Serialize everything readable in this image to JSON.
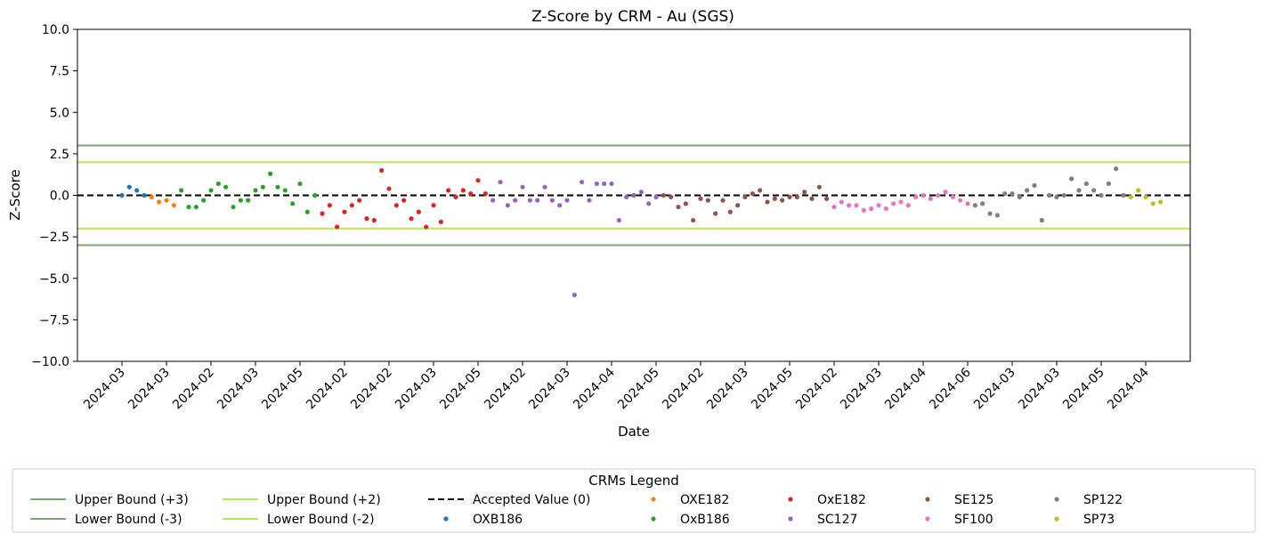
{
  "chart_data": {
    "type": "scatter",
    "title": "Z-Score by CRM - Au (SGS)",
    "xlabel": "Date",
    "ylabel": "Z-Score",
    "ylim": [
      -10,
      10
    ],
    "yticks": [
      {
        "value": 10,
        "label": "10.0"
      },
      {
        "value": 7.5,
        "label": "7.5"
      },
      {
        "value": 5,
        "label": "5.0"
      },
      {
        "value": 2.5,
        "label": "2.5"
      },
      {
        "value": 0,
        "label": "0.0"
      },
      {
        "value": -2.5,
        "label": "−2.5"
      },
      {
        "value": -5,
        "label": "−5.0"
      },
      {
        "value": -7.5,
        "label": "−7.5"
      },
      {
        "value": -10,
        "label": "−10.0"
      }
    ],
    "xlim": [
      -6,
      144
    ],
    "xticks": [
      {
        "index": 0,
        "label": "2024-03"
      },
      {
        "index": 6,
        "label": "2024-03"
      },
      {
        "index": 12,
        "label": "2024-02"
      },
      {
        "index": 18,
        "label": "2024-03"
      },
      {
        "index": 24,
        "label": "2024-05"
      },
      {
        "index": 30,
        "label": "2024-02"
      },
      {
        "index": 36,
        "label": "2024-02"
      },
      {
        "index": 42,
        "label": "2024-03"
      },
      {
        "index": 48,
        "label": "2024-05"
      },
      {
        "index": 54,
        "label": "2024-02"
      },
      {
        "index": 60,
        "label": "2024-03"
      },
      {
        "index": 66,
        "label": "2024-04"
      },
      {
        "index": 72,
        "label": "2024-05"
      },
      {
        "index": 78,
        "label": "2024-02"
      },
      {
        "index": 84,
        "label": "2024-03"
      },
      {
        "index": 90,
        "label": "2024-05"
      },
      {
        "index": 96,
        "label": "2024-02"
      },
      {
        "index": 102,
        "label": "2024-03"
      },
      {
        "index": 108,
        "label": "2024-04"
      },
      {
        "index": 114,
        "label": "2024-06"
      },
      {
        "index": 120,
        "label": "2024-03"
      },
      {
        "index": 126,
        "label": "2024-03"
      },
      {
        "index": 132,
        "label": "2024-05"
      },
      {
        "index": 138,
        "label": "2024-04"
      }
    ],
    "reference_lines": [
      {
        "name": "Upper Bound (+3)",
        "value": 3,
        "color": "#7aa87a",
        "style": "solid"
      },
      {
        "name": "Lower Bound (-3)",
        "value": -3,
        "color": "#7aa87a",
        "style": "solid"
      },
      {
        "name": "Upper Bound (+2)",
        "value": 2,
        "color": "#b5e853",
        "style": "solid"
      },
      {
        "name": "Lower Bound (-2)",
        "value": -2,
        "color": "#b5e853",
        "style": "solid"
      },
      {
        "name": "Accepted Value (0)",
        "value": 0,
        "color": "#000000",
        "style": "dashed"
      }
    ],
    "series": [
      {
        "name": "OXB186",
        "color": "#1f77b4",
        "x": [
          0,
          1,
          2,
          3
        ],
        "y": [
          0.0,
          0.5,
          0.3,
          0.0
        ]
      },
      {
        "name": "OXE182",
        "color": "#ff7f0e",
        "x": [
          4,
          5,
          6,
          7
        ],
        "y": [
          -0.1,
          -0.4,
          -0.3,
          -0.6
        ]
      },
      {
        "name": "OxB186",
        "color": "#2ca02c",
        "x": [
          8,
          9,
          10,
          11,
          12,
          13,
          14,
          15,
          16,
          17,
          18,
          19,
          20,
          21,
          22,
          23,
          24,
          25,
          26
        ],
        "y": [
          0.3,
          -0.7,
          -0.7,
          -0.3,
          0.3,
          0.7,
          0.5,
          -0.7,
          -0.3,
          -0.3,
          0.3,
          0.5,
          1.3,
          0.5,
          0.3,
          -0.5,
          0.7,
          -1.0,
          0.0
        ]
      },
      {
        "name": "OxE182",
        "color": "#d62728",
        "x": [
          27,
          28,
          29,
          30,
          31,
          32,
          33,
          34,
          35,
          36,
          37,
          38,
          39,
          40,
          41,
          42,
          43,
          44,
          45,
          46,
          47,
          48,
          49
        ],
        "y": [
          -1.1,
          -0.6,
          -1.9,
          -1.0,
          -0.6,
          -0.3,
          -1.4,
          -1.5,
          1.5,
          0.4,
          -0.6,
          -0.3,
          -1.4,
          -1.0,
          -1.9,
          -0.6,
          -1.6,
          0.3,
          -0.1,
          0.3,
          0.1,
          0.9,
          0.1
        ]
      },
      {
        "name": "SC127",
        "color": "#9467bd",
        "x": [
          50,
          51,
          52,
          53,
          54,
          55,
          56,
          57,
          58,
          59,
          60,
          61,
          62,
          63,
          64,
          65,
          66,
          67,
          68,
          69,
          70,
          71,
          72
        ],
        "y": [
          -0.3,
          0.8,
          -0.6,
          -0.3,
          0.5,
          -0.3,
          -0.3,
          0.5,
          -0.3,
          -0.6,
          -0.3,
          -6.0,
          0.8,
          -0.3,
          0.7,
          0.7,
          0.7,
          -1.5,
          -0.1,
          0.0,
          0.2,
          -0.5,
          -0.1
        ]
      },
      {
        "name": "SE125",
        "color": "#8c564b",
        "x": [
          73,
          74,
          75,
          76,
          77,
          78,
          79,
          80,
          81,
          82,
          83,
          84,
          85,
          86,
          87,
          88,
          89,
          90,
          91,
          92,
          93,
          94,
          95
        ],
        "y": [
          0.0,
          -0.1,
          -0.7,
          -0.5,
          -1.5,
          -0.2,
          -0.3,
          -1.1,
          -0.3,
          -1.0,
          -0.6,
          -0.1,
          0.1,
          0.3,
          -0.4,
          -0.2,
          -0.3,
          -0.1,
          -0.1,
          0.2,
          -0.2,
          0.5,
          -0.2
        ]
      },
      {
        "name": "SF100",
        "color": "#e377c2",
        "x": [
          96,
          97,
          98,
          99,
          100,
          101,
          102,
          103,
          104,
          105,
          106,
          107,
          108,
          109,
          110,
          111,
          112,
          113,
          114
        ],
        "y": [
          -0.7,
          -0.4,
          -0.6,
          -0.6,
          -0.9,
          -0.8,
          -0.6,
          -0.8,
          -0.5,
          -0.4,
          -0.6,
          -0.1,
          0.0,
          -0.2,
          0.0,
          0.2,
          -0.1,
          -0.3,
          -0.5
        ]
      },
      {
        "name": "SP122",
        "color": "#7f7f7f",
        "x": [
          115,
          116,
          117,
          118,
          119,
          120,
          121,
          122,
          123,
          124,
          125,
          126,
          127,
          128,
          129,
          130,
          131,
          132,
          133,
          134,
          135
        ],
        "y": [
          -0.6,
          -0.5,
          -1.1,
          -1.2,
          0.1,
          0.1,
          -0.1,
          0.3,
          0.6,
          -1.5,
          0.0,
          -0.1,
          0.0,
          1.0,
          0.3,
          0.7,
          0.3,
          0.0,
          0.7,
          1.6,
          0.0
        ]
      },
      {
        "name": "SP73",
        "color": "#bcbd22",
        "x": [
          136,
          137,
          138,
          139,
          140
        ],
        "y": [
          -0.1,
          0.3,
          -0.1,
          -0.5,
          -0.4
        ]
      }
    ]
  },
  "legend": {
    "title": "CRMs Legend",
    "entries": [
      {
        "label": "Upper Bound (+3)",
        "kind": "line",
        "color": "#7aa87a"
      },
      {
        "label": "Lower Bound (-3)",
        "kind": "line",
        "color": "#7aa87a"
      },
      {
        "label": "Upper Bound (+2)",
        "kind": "line",
        "color": "#b5e853"
      },
      {
        "label": "Lower Bound (-2)",
        "kind": "line",
        "color": "#b5e853"
      },
      {
        "label": "Accepted Value (0)",
        "kind": "dashed",
        "color": "#000000"
      },
      {
        "label": "OXB186",
        "kind": "dot",
        "color": "#1f77b4"
      },
      {
        "label": "OXE182",
        "kind": "dot",
        "color": "#ff7f0e"
      },
      {
        "label": "OxB186",
        "kind": "dot",
        "color": "#2ca02c"
      },
      {
        "label": "OxE182",
        "kind": "dot",
        "color": "#d62728"
      },
      {
        "label": "SC127",
        "kind": "dot",
        "color": "#9467bd"
      },
      {
        "label": "SE125",
        "kind": "dot",
        "color": "#8c564b"
      },
      {
        "label": "SF100",
        "kind": "dot",
        "color": "#e377c2"
      },
      {
        "label": "SP122",
        "kind": "dot",
        "color": "#7f7f7f"
      },
      {
        "label": "SP73",
        "kind": "dot",
        "color": "#bcbd22"
      }
    ]
  }
}
